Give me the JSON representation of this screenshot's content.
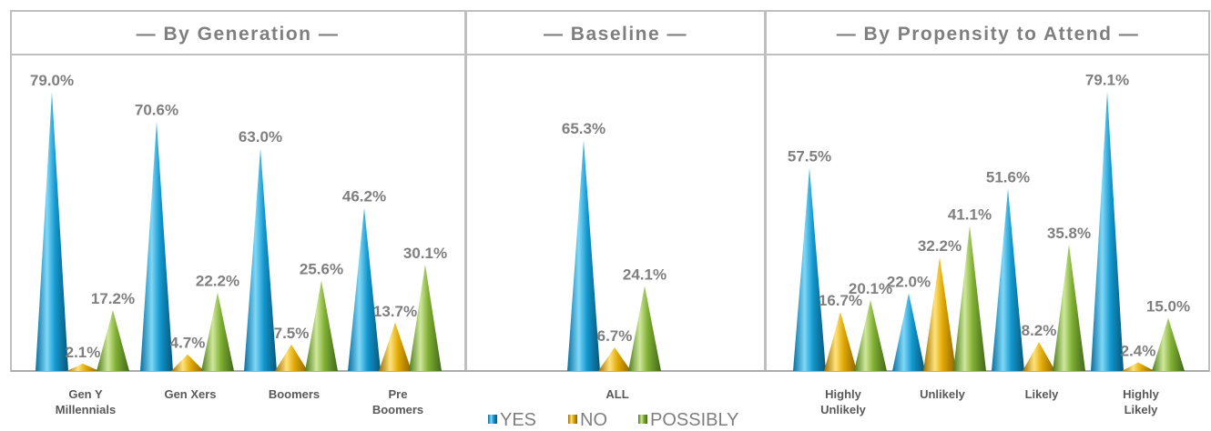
{
  "chart_data": {
    "type": "bar",
    "bar_shape": "cone",
    "ylim": [
      0,
      85
    ],
    "series_names": [
      "YES",
      "NO",
      "POSSIBLY"
    ],
    "colors": {
      "YES": "#1aaee6",
      "NO": "#f2b800",
      "POSSIBLY": "#8fbf3c",
      "header_text": "#7f7f7f",
      "label_text": "#7f7f7f",
      "category_text": "#595959",
      "frame": "#bfbfbf"
    },
    "panels": [
      {
        "title": "— By Generation —",
        "categories": [
          {
            "label": [
              "Gen Y",
              "Millennials"
            ],
            "values": [
              79.0,
              2.1,
              17.2
            ],
            "labels": [
              "79.0%",
              "2.1%",
              "17.2%"
            ]
          },
          {
            "label": [
              "Gen Xers"
            ],
            "values": [
              70.6,
              4.7,
              22.2
            ],
            "labels": [
              "70.6%",
              "4.7%",
              "22.2%"
            ]
          },
          {
            "label": [
              "Boomers"
            ],
            "values": [
              63.0,
              7.5,
              25.6
            ],
            "labels": [
              "63.0%",
              "7.5%",
              "25.6%"
            ]
          },
          {
            "label": [
              "Pre",
              "Boomers"
            ],
            "values": [
              46.2,
              13.7,
              30.1
            ],
            "labels": [
              "46.2%",
              "13.7%",
              "30.1%"
            ]
          }
        ]
      },
      {
        "title": "— Baseline —",
        "categories": [
          {
            "label": [
              "ALL"
            ],
            "values": [
              65.3,
              6.7,
              24.1
            ],
            "labels": [
              "65.3%",
              "6.7%",
              "24.1%"
            ]
          }
        ]
      },
      {
        "title": "— By Propensity to Attend —",
        "categories": [
          {
            "label": [
              "Highly",
              "Unlikely"
            ],
            "values": [
              57.5,
              16.7,
              20.1
            ],
            "labels": [
              "57.5%",
              "16.7%",
              "20.1%"
            ]
          },
          {
            "label": [
              "Unlikely"
            ],
            "values": [
              22.0,
              32.2,
              41.1
            ],
            "labels": [
              "22.0%",
              "32.2%",
              "41.1%"
            ]
          },
          {
            "label": [
              "Likely"
            ],
            "values": [
              51.6,
              8.2,
              35.8
            ],
            "labels": [
              "51.6%",
              "8.2%",
              "35.8%"
            ]
          },
          {
            "label": [
              "Highly",
              "Likely"
            ],
            "values": [
              79.1,
              2.4,
              15.0
            ],
            "labels": [
              "79.1%",
              "2.4%",
              "15.0%"
            ]
          }
        ]
      }
    ],
    "legend": {
      "placement": "bottom",
      "entries": [
        "YES",
        "NO",
        "POSSIBLY"
      ]
    }
  }
}
